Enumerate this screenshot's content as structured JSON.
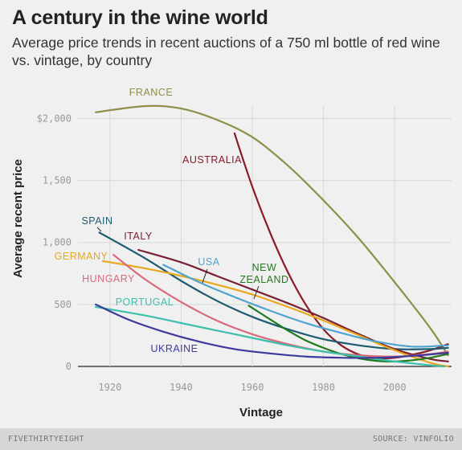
{
  "header": {
    "title": "A century in the wine world",
    "subtitle": "Average price trends in recent auctions of a 750 ml bottle of red wine vs. vintage, by country"
  },
  "footer": {
    "brand": "FIVETHIRTYEIGHT",
    "source": "SOURCE: VINFOLIO"
  },
  "chart_data": {
    "type": "line",
    "xlabel": "Vintage",
    "ylabel": "Average recent price",
    "xlim": [
      1911,
      2016
    ],
    "ylim": [
      0,
      2100
    ],
    "x_ticks": [
      1920,
      1940,
      1960,
      1980,
      2000
    ],
    "x_tick_labels": [
      "1920",
      "1940",
      "1960",
      "1980",
      "2000"
    ],
    "y_ticks": [
      0,
      500,
      1000,
      1500,
      2000
    ],
    "y_tick_labels": [
      "0",
      "500",
      "1,000",
      "1,500",
      "$2,000"
    ],
    "grid": true,
    "series": [
      {
        "name": "FRANCE",
        "color": "#8f8f4a",
        "points": [
          [
            1916,
            2050
          ],
          [
            1930,
            2100
          ],
          [
            1940,
            2080
          ],
          [
            1950,
            1990
          ],
          [
            1960,
            1850
          ],
          [
            1970,
            1620
          ],
          [
            1980,
            1340
          ],
          [
            1990,
            1030
          ],
          [
            2000,
            680
          ],
          [
            2010,
            310
          ],
          [
            2015,
            90
          ]
        ]
      },
      {
        "name": "AUSTRALIA",
        "color": "#8b1a2b",
        "points": [
          [
            1955,
            1880
          ],
          [
            1960,
            1450
          ],
          [
            1965,
            1080
          ],
          [
            1970,
            760
          ],
          [
            1975,
            500
          ],
          [
            1980,
            300
          ],
          [
            1985,
            170
          ],
          [
            1990,
            95
          ],
          [
            1995,
            65
          ],
          [
            2000,
            70
          ],
          [
            2005,
            95
          ],
          [
            2010,
            130
          ],
          [
            2015,
            180
          ]
        ]
      },
      {
        "name": "SPAIN",
        "color": "#1e5b73",
        "points": [
          [
            1917,
            1080
          ],
          [
            1930,
            870
          ],
          [
            1940,
            690
          ],
          [
            1950,
            530
          ],
          [
            1960,
            400
          ],
          [
            1970,
            300
          ],
          [
            1980,
            220
          ],
          [
            1990,
            170
          ],
          [
            2000,
            140
          ],
          [
            2010,
            140
          ],
          [
            2015,
            150
          ]
        ]
      },
      {
        "name": "ITALY",
        "color": "#7a2035",
        "points": [
          [
            1928,
            940
          ],
          [
            1940,
            840
          ],
          [
            1950,
            730
          ],
          [
            1960,
            620
          ],
          [
            1970,
            510
          ],
          [
            1980,
            390
          ],
          [
            1990,
            260
          ],
          [
            2000,
            140
          ],
          [
            2010,
            60
          ],
          [
            2015,
            40
          ]
        ]
      },
      {
        "name": "GERMANY",
        "color": "#e8a81a",
        "points": [
          [
            1918,
            850
          ],
          [
            1930,
            790
          ],
          [
            1940,
            730
          ],
          [
            1950,
            660
          ],
          [
            1960,
            580
          ],
          [
            1970,
            480
          ],
          [
            1980,
            370
          ],
          [
            1990,
            250
          ],
          [
            2000,
            130
          ],
          [
            2010,
            30
          ],
          [
            2015,
            0
          ]
        ]
      },
      {
        "name": "USA",
        "color": "#4ea4cf",
        "points": [
          [
            1935,
            820
          ],
          [
            1945,
            680
          ],
          [
            1955,
            560
          ],
          [
            1965,
            450
          ],
          [
            1975,
            350
          ],
          [
            1985,
            270
          ],
          [
            1995,
            200
          ],
          [
            2005,
            160
          ],
          [
            2015,
            170
          ]
        ]
      },
      {
        "name": "HUNGARY",
        "color": "#d96a7a",
        "points": [
          [
            1921,
            900
          ],
          [
            1930,
            700
          ],
          [
            1940,
            520
          ],
          [
            1950,
            370
          ],
          [
            1960,
            260
          ],
          [
            1970,
            180
          ],
          [
            1980,
            120
          ],
          [
            1990,
            90
          ],
          [
            2000,
            80
          ],
          [
            2010,
            100
          ],
          [
            2015,
            120
          ]
        ]
      },
      {
        "name": "NEW ZEALAND",
        "color": "#237a1c",
        "points": [
          [
            1959,
            490
          ],
          [
            1965,
            380
          ],
          [
            1970,
            290
          ],
          [
            1975,
            210
          ],
          [
            1980,
            150
          ],
          [
            1985,
            100
          ],
          [
            1990,
            65
          ],
          [
            1995,
            45
          ],
          [
            2000,
            40
          ],
          [
            2005,
            50
          ],
          [
            2010,
            70
          ],
          [
            2015,
            100
          ]
        ]
      },
      {
        "name": "PORTUGAL",
        "color": "#3cbfad",
        "points": [
          [
            1916,
            480
          ],
          [
            1930,
            410
          ],
          [
            1940,
            350
          ],
          [
            1950,
            290
          ],
          [
            1960,
            230
          ],
          [
            1970,
            170
          ],
          [
            1980,
            120
          ],
          [
            1990,
            80
          ],
          [
            2000,
            40
          ],
          [
            2010,
            10
          ],
          [
            2014,
            0
          ]
        ]
      },
      {
        "name": "UKRAINE",
        "color": "#3d3a9c",
        "points": [
          [
            1916,
            500
          ],
          [
            1925,
            380
          ],
          [
            1935,
            280
          ],
          [
            1945,
            200
          ],
          [
            1955,
            140
          ],
          [
            1965,
            105
          ],
          [
            1975,
            80
          ],
          [
            1985,
            70
          ],
          [
            1995,
            70
          ],
          [
            2005,
            85
          ],
          [
            2015,
            110
          ]
        ]
      }
    ]
  }
}
